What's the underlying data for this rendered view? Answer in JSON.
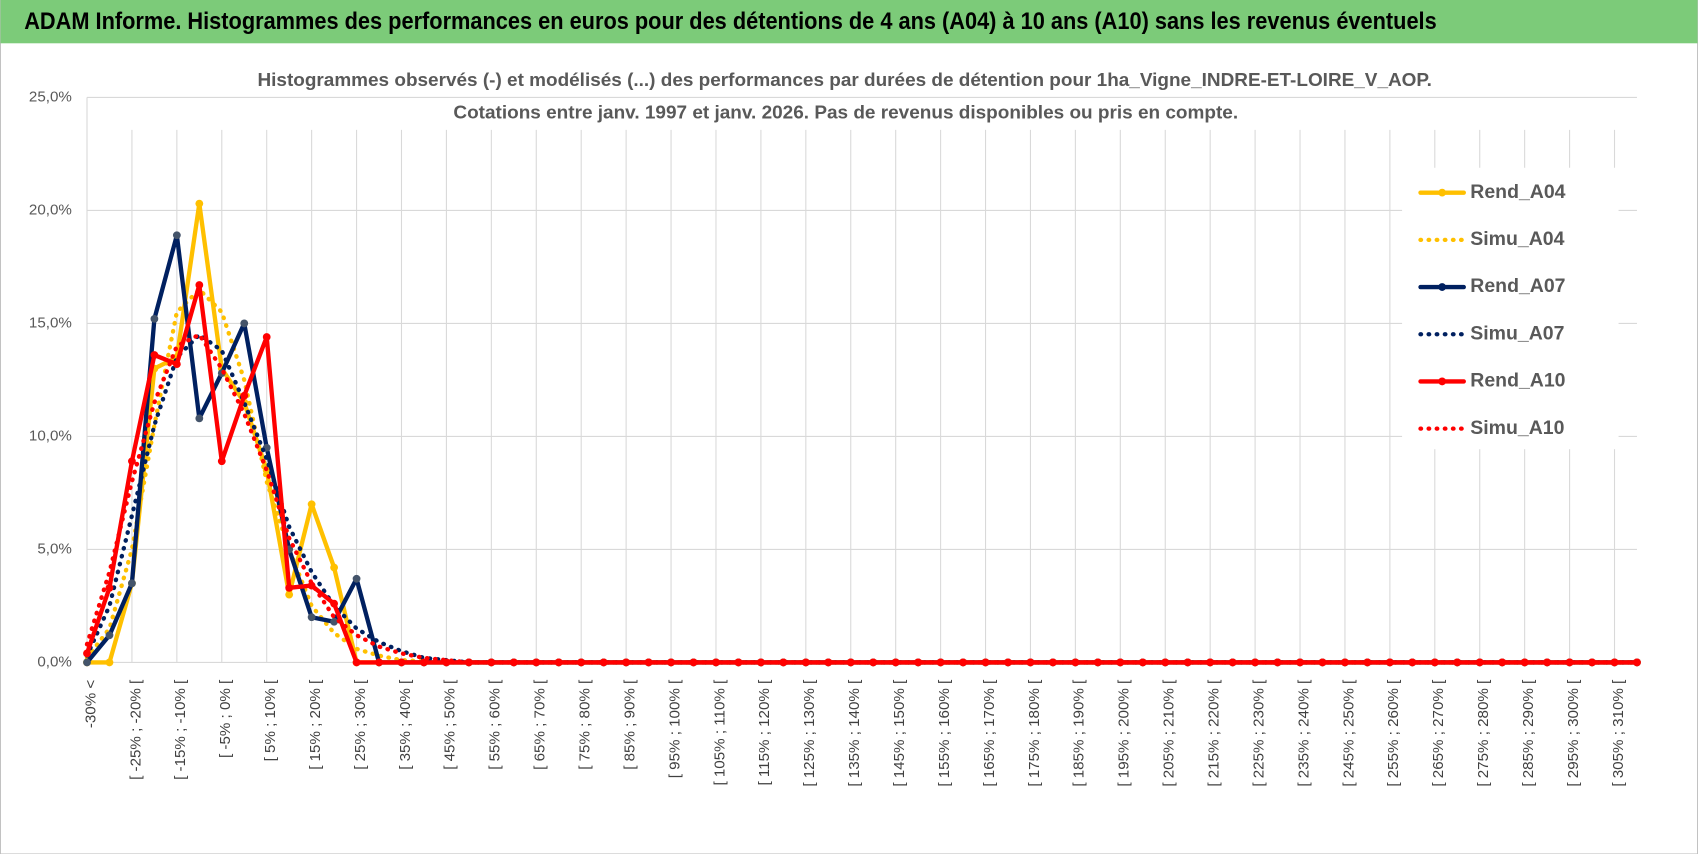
{
  "header": {
    "title": "ADAM Informe. Histogrammes des performances en euros pour des détentions de 4 ans (A04) à 10 ans (A10) sans les revenus éventuels"
  },
  "chart_data": {
    "type": "line",
    "title": "Histogrammes observés (-) et modélisés (...) des performances par durées de détention pour 1ha_Vigne_INDRE-ET-LOIRE_V_AOP.",
    "subtitle": "Cotations entre janv. 1997 et janv. 2026. Pas de revenus disponibles ou pris en compte.",
    "categories": [
      "-30% <",
      null,
      "[ -25% ; -20% [",
      null,
      "[ -15% ; -10% [",
      null,
      "[ -5% ; 0% [",
      null,
      "[ 5% ; 10% [",
      null,
      "[ 15% ; 20% [",
      null,
      "[ 25% ; 30% [",
      null,
      "[ 35% ; 40% [",
      null,
      "[ 45% ; 50% [",
      null,
      "[ 55% ; 60% [",
      null,
      "[ 65% ; 70% [",
      null,
      "[ 75% ; 80% [",
      null,
      "[ 85% ; 90% [",
      null,
      "[ 95% ; 100% [",
      null,
      "[ 105% ; 110% [",
      null,
      "[ 115% ; 120% [",
      null,
      "[ 125% ; 130% [",
      null,
      "[ 135% ; 140% [",
      null,
      "[ 145% ; 150% [",
      null,
      "[ 155% ; 160% [",
      null,
      "[ 165% ; 170% [",
      null,
      "[ 175% ; 180% [",
      null,
      "[ 185% ; 190% [",
      null,
      "[ 195% ; 200% [",
      null,
      "[ 205% ; 210% [",
      null,
      "[ 215% ; 220% [",
      null,
      "[ 225% ; 230% [",
      null,
      "[ 235% ; 240% [",
      null,
      "[ 245% ; 250% [",
      null,
      "[ 255% ; 260% [",
      null,
      "[ 265% ; 270% [",
      null,
      "[ 275% ; 280% [",
      null,
      "[ 285% ; 290% [",
      null,
      "[ 295% ; 300% [",
      null,
      "[ 305% ; 310% [",
      null
    ],
    "series": [
      {
        "name": "Rend_A04",
        "color": "#ffc000",
        "dash": false,
        "markers": true,
        "values": [
          0,
          0,
          3.5,
          13,
          13.5,
          20.3,
          13,
          11.5,
          8.5,
          3,
          7,
          4.2,
          0,
          0,
          0,
          0,
          0,
          0,
          0,
          0,
          0,
          0,
          0,
          0,
          0,
          0,
          0,
          0,
          0,
          0,
          0,
          0,
          0,
          0,
          0,
          0,
          0,
          0,
          0,
          0,
          0,
          0,
          0,
          0,
          0,
          0,
          0,
          0,
          0,
          0,
          0,
          0,
          0,
          0,
          0,
          0,
          0,
          0,
          0,
          0,
          0,
          0,
          0,
          0,
          0,
          0,
          0,
          0,
          0,
          0
        ]
      },
      {
        "name": "Simu_A04",
        "color": "#ffc000",
        "dash": true,
        "markers": false,
        "values": [
          0.2,
          1.5,
          5,
          10.5,
          15.5,
          16.5,
          15.5,
          12.5,
          8,
          5,
          2.5,
          1.3,
          0.6,
          0.3,
          0.1,
          0.05,
          0,
          0,
          0,
          0,
          0,
          0,
          0,
          0,
          0,
          0,
          0,
          0,
          0,
          0,
          0,
          0,
          0,
          0,
          0,
          0,
          0,
          0,
          0,
          0,
          0,
          0,
          0,
          0,
          0,
          0,
          0,
          0,
          0,
          0,
          0,
          0,
          0,
          0,
          0,
          0,
          0,
          0,
          0,
          0,
          0,
          0,
          0,
          0,
          0,
          0,
          0,
          0,
          0,
          0
        ]
      },
      {
        "name": "Rend_A07",
        "color": "#002060",
        "dash": false,
        "markers": true,
        "values": [
          0,
          1.2,
          3.5,
          15.2,
          18.9,
          10.8,
          12.8,
          15,
          9.5,
          5,
          2,
          1.8,
          3.7,
          0,
          0,
          0,
          0,
          0,
          0,
          0,
          0,
          0,
          0,
          0,
          0,
          0,
          0,
          0,
          0,
          0,
          0,
          0,
          0,
          0,
          0,
          0,
          0,
          0,
          0,
          0,
          0,
          0,
          0,
          0,
          0,
          0,
          0,
          0,
          0,
          0,
          0,
          0,
          0,
          0,
          0,
          0,
          0,
          0,
          0,
          0,
          0,
          0,
          0,
          0,
          0,
          0,
          0,
          0,
          0,
          0
        ]
      },
      {
        "name": "Simu_A07",
        "color": "#002060",
        "dash": true,
        "markers": false,
        "values": [
          0.3,
          2.5,
          6.5,
          10.5,
          13.5,
          14.5,
          13.8,
          11.5,
          9,
          6,
          4,
          2.5,
          1.5,
          0.9,
          0.5,
          0.2,
          0.1,
          0,
          0,
          0,
          0,
          0,
          0,
          0,
          0,
          0,
          0,
          0,
          0,
          0,
          0,
          0,
          0,
          0,
          0,
          0,
          0,
          0,
          0,
          0,
          0,
          0,
          0,
          0,
          0,
          0,
          0,
          0,
          0,
          0,
          0,
          0,
          0,
          0,
          0,
          0,
          0,
          0,
          0,
          0,
          0,
          0,
          0,
          0,
          0,
          0,
          0,
          0,
          0,
          0
        ]
      },
      {
        "name": "Rend_A10",
        "color": "#ff0000",
        "dash": false,
        "markers": true,
        "values": [
          0.4,
          3.3,
          8.9,
          13.6,
          13.2,
          16.7,
          8.9,
          11.8,
          14.4,
          3.3,
          3.4,
          2.6,
          0,
          0,
          0,
          0,
          0,
          0,
          0,
          0,
          0,
          0,
          0,
          0,
          0,
          0,
          0,
          0,
          0,
          0,
          0,
          0,
          0,
          0,
          0,
          0,
          0,
          0,
          0,
          0,
          0,
          0,
          0,
          0,
          0,
          0,
          0,
          0,
          0,
          0,
          0,
          0,
          0,
          0,
          0,
          0,
          0,
          0,
          0,
          0,
          0,
          0,
          0,
          0,
          0,
          0,
          0,
          0,
          0,
          0
        ]
      },
      {
        "name": "Simu_A10",
        "color": "#ff0000",
        "dash": true,
        "markers": false,
        "values": [
          0.8,
          4,
          8,
          11.5,
          14,
          14.5,
          13,
          11,
          8.5,
          5.5,
          3.5,
          2,
          1.2,
          0.7,
          0.4,
          0.2,
          0.1,
          0,
          0,
          0,
          0,
          0,
          0,
          0,
          0,
          0,
          0,
          0,
          0,
          0,
          0,
          0,
          0,
          0,
          0,
          0,
          0,
          0,
          0,
          0,
          0,
          0,
          0,
          0,
          0,
          0,
          0,
          0,
          0,
          0,
          0,
          0,
          0,
          0,
          0,
          0,
          0,
          0,
          0,
          0,
          0,
          0,
          0,
          0,
          0,
          0,
          0,
          0,
          0,
          0
        ]
      }
    ],
    "ylim": [
      0,
      25
    ],
    "yticks": [
      {
        "value": 0,
        "label": "0,0%"
      },
      {
        "value": 5,
        "label": "5,0%"
      },
      {
        "value": 10,
        "label": "10,0%"
      },
      {
        "value": 15,
        "label": "15,0%"
      },
      {
        "value": 20,
        "label": "20,0%"
      },
      {
        "value": 25,
        "label": "25,0%"
      }
    ],
    "grid": true,
    "legend": "right"
  }
}
